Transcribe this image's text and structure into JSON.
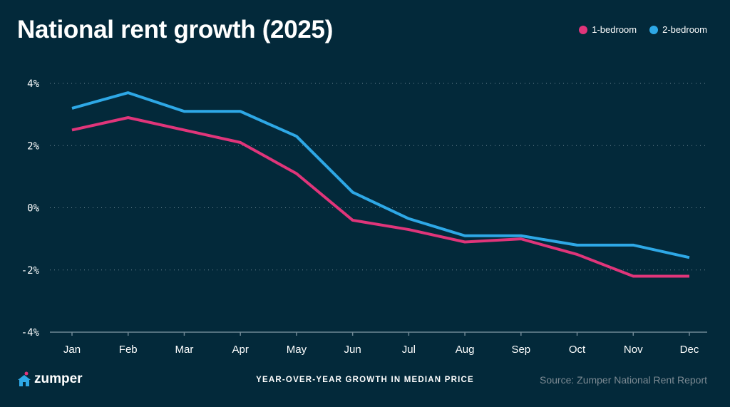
{
  "chart_data": {
    "type": "line",
    "title": "National rent growth (2025)",
    "xlabel": "YEAR-OVER-YEAR GROWTH IN MEDIAN PRICE",
    "ylabel": "",
    "categories": [
      "Jan",
      "Feb",
      "Mar",
      "Apr",
      "May",
      "Jun",
      "Jul",
      "Aug",
      "Sep",
      "Oct",
      "Nov",
      "Dec"
    ],
    "yticks": [
      4,
      2,
      0,
      -2,
      -4
    ],
    "ytick_labels": [
      "4%",
      "2%",
      "0%",
      "-2%",
      "-4%"
    ],
    "ylim": [
      -4,
      4
    ],
    "grid": "horizontal dotted",
    "legend_position": "top-right",
    "series": [
      {
        "name": "1-bedroom",
        "color": "#e0357a",
        "values": [
          2.5,
          2.9,
          2.5,
          2.1,
          1.1,
          -0.4,
          -0.7,
          -1.1,
          -1.0,
          -1.5,
          -2.2,
          -2.2
        ]
      },
      {
        "name": "2-bedroom",
        "color": "#2ea8e6",
        "values": [
          3.2,
          3.7,
          3.1,
          3.1,
          2.3,
          0.5,
          -0.35,
          -0.9,
          -0.9,
          -1.2,
          -1.2,
          -1.6
        ]
      }
    ]
  },
  "footer": {
    "brand": "zumper",
    "source": "Source: Zumper National Rent Report"
  }
}
